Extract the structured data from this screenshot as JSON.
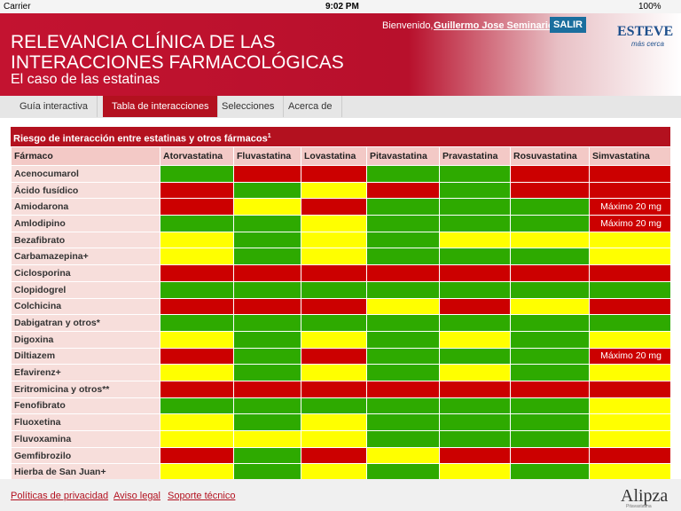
{
  "status_bar": {
    "carrier": "Carrier",
    "time": "9:02 PM",
    "battery": "100%"
  },
  "header": {
    "title_line1": "RELEVANCIA CLÍNICA DE LAS",
    "title_line2": "INTERACCIONES FARMACOLÓGICAS",
    "subtitle": "El caso de las estatinas",
    "welcome": "Bienvenido,",
    "user": "Guillermo Jose Seminario",
    "logout": "SALIR",
    "logo": "ESTEVE",
    "logo_tagline": "más cerca"
  },
  "tabs": [
    "Guía interactiva",
    "Tabla de interacciones",
    "Selecciones",
    "Acerca de"
  ],
  "active_tab": 1,
  "table": {
    "title": "Riesgo de interacción entre estatinas y otros fármacos",
    "title_note": "1",
    "columns": [
      "Fármaco",
      "Atorvastatina",
      "Fluvastatina",
      "Lovastatina",
      "Pitavastatina",
      "Pravastatina",
      "Rosuvastatina",
      "Simvastatina"
    ],
    "rows": [
      {
        "name": "Acenocumarol",
        "cells": [
          "#2eaa00",
          "#cc0000",
          "#cc0000",
          "#2eaa00",
          "#2eaa00",
          "#cc0000",
          "#cc0000"
        ]
      },
      {
        "name": "Ácido fusídico",
        "cells": [
          "#cc0000",
          "#2eaa00",
          "#ffff00",
          "#cc0000",
          "#2eaa00",
          "#cc0000",
          "#cc0000"
        ]
      },
      {
        "name": "Amiodarona",
        "cells": [
          "#cc0000",
          "#ffff00",
          "#cc0000",
          "#2eaa00",
          "#2eaa00",
          "#2eaa00",
          {
            "color": "#cc0000",
            "label": "Máximo 20 mg"
          }
        ]
      },
      {
        "name": "Amlodipino",
        "cells": [
          "#2eaa00",
          "#2eaa00",
          "#ffff00",
          "#2eaa00",
          "#2eaa00",
          "#2eaa00",
          {
            "color": "#cc0000",
            "label": "Máximo 20 mg"
          }
        ]
      },
      {
        "name": "Bezafibrato",
        "cells": [
          "#ffff00",
          "#2eaa00",
          "#ffff00",
          "#2eaa00",
          "#ffff00",
          "#ffff00",
          "#ffff00"
        ]
      },
      {
        "name": "Carbamazepina+",
        "cells": [
          "#ffff00",
          "#2eaa00",
          "#ffff00",
          "#2eaa00",
          "#2eaa00",
          "#2eaa00",
          "#ffff00"
        ]
      },
      {
        "name": "Ciclosporina",
        "cells": [
          "#cc0000",
          "#cc0000",
          "#cc0000",
          "#cc0000",
          "#cc0000",
          "#cc0000",
          "#cc0000"
        ]
      },
      {
        "name": "Clopidogrel",
        "cells": [
          "#2eaa00",
          "#2eaa00",
          "#2eaa00",
          "#2eaa00",
          "#2eaa00",
          "#2eaa00",
          "#2eaa00"
        ]
      },
      {
        "name": "Colchicina",
        "cells": [
          "#cc0000",
          "#cc0000",
          "#cc0000",
          "#ffff00",
          "#cc0000",
          "#ffff00",
          "#cc0000"
        ]
      },
      {
        "name": "Dabigatran y otros*",
        "cells": [
          "#2eaa00",
          "#2eaa00",
          "#2eaa00",
          "#2eaa00",
          "#2eaa00",
          "#2eaa00",
          "#2eaa00"
        ]
      },
      {
        "name": "Digoxina",
        "cells": [
          "#ffff00",
          "#2eaa00",
          "#ffff00",
          "#2eaa00",
          "#ffff00",
          "#2eaa00",
          "#ffff00"
        ]
      },
      {
        "name": "Diltiazem",
        "cells": [
          "#cc0000",
          "#2eaa00",
          "#cc0000",
          "#2eaa00",
          "#2eaa00",
          "#2eaa00",
          {
            "color": "#cc0000",
            "label": "Máximo 20 mg"
          }
        ]
      },
      {
        "name": "Efavirenz+",
        "cells": [
          "#ffff00",
          "#2eaa00",
          "#ffff00",
          "#2eaa00",
          "#ffff00",
          "#2eaa00",
          "#ffff00"
        ]
      },
      {
        "name": "Eritromicina y otros**",
        "cells": [
          "#cc0000",
          "#cc0000",
          "#cc0000",
          "#cc0000",
          "#cc0000",
          "#cc0000",
          "#cc0000"
        ]
      },
      {
        "name": "Fenofibrato",
        "cells": [
          "#2eaa00",
          "#2eaa00",
          "#2eaa00",
          "#2eaa00",
          "#2eaa00",
          "#2eaa00",
          "#ffff00"
        ]
      },
      {
        "name": "Fluoxetina",
        "cells": [
          "#ffff00",
          "#2eaa00",
          "#ffff00",
          "#2eaa00",
          "#2eaa00",
          "#2eaa00",
          "#ffff00"
        ]
      },
      {
        "name": "Fluvoxamina",
        "cells": [
          "#ffff00",
          "#ffff00",
          "#ffff00",
          "#2eaa00",
          "#2eaa00",
          "#2eaa00",
          "#ffff00"
        ]
      },
      {
        "name": "Gemfibrozilo",
        "cells": [
          "#cc0000",
          "#2eaa00",
          "#cc0000",
          "#ffff00",
          "#cc0000",
          "#cc0000",
          "#cc0000"
        ]
      },
      {
        "name": "Hierba de San Juan+",
        "cells": [
          "#ffff00",
          "#2eaa00",
          "#ffff00",
          "#2eaa00",
          "#ffff00",
          "#2eaa00",
          "#ffff00"
        ]
      }
    ]
  },
  "footer": {
    "links": [
      "Políticas de privacidad",
      "Aviso legal",
      "Soporte técnico"
    ],
    "brand": "Alipza",
    "brand_sub": "Pitavastatina"
  }
}
